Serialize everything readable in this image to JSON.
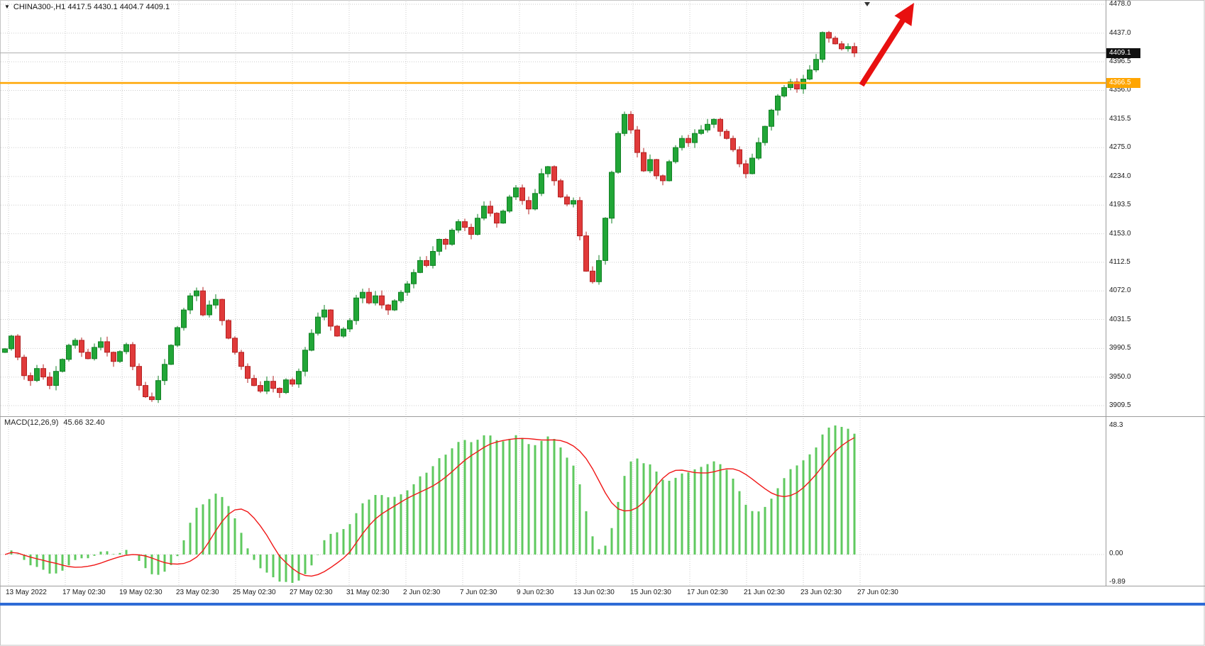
{
  "chart_data": {
    "type": "candlestick",
    "title": "CHINA300-,H1",
    "symbol": "CHINA300-",
    "timeframe": "H1",
    "header": {
      "display": "CHINA300-,H1 4417.5 4430.1 4404.7 4409.1",
      "open": "4417.5",
      "high": "4430.1",
      "low": "4404.7",
      "close": "4409.1"
    },
    "price_axis": {
      "max": 4478.0,
      "min": 3909.5,
      "labels": [
        "4478.0",
        "4437.0",
        "4396.5",
        "4356.0",
        "4315.5",
        "4275.0",
        "4234.0",
        "4193.5",
        "4153.0",
        "4112.5",
        "4072.0",
        "4031.5",
        "3990.5",
        "3950.0",
        "3909.5"
      ]
    },
    "current_price_tag": "4409.1",
    "current_price": 4409.1,
    "hline": {
      "label": "4366.5",
      "value": 4366.5,
      "color": "#FFA500"
    },
    "time_axis_labels": [
      "13 May 2022",
      "17 May 02:30",
      "19 May 02:30",
      "23 May 02:30",
      "25 May 02:30",
      "27 May 02:30",
      "31 May 02:30",
      "2 Jun 02:30",
      "7 Jun 02:30",
      "9 Jun 02:30",
      "13 Jun 02:30",
      "15 Jun 02:30",
      "17 Jun 02:30",
      "21 Jun 02:30",
      "23 Jun 02:30",
      "27 Jun 02:30"
    ],
    "candles": {
      "first_open": 3985,
      "closes": [
        3990,
        4008,
        3978,
        3952,
        3945,
        3962,
        3950,
        3938,
        3958,
        3975,
        3995,
        4002,
        3985,
        3976,
        3992,
        4000,
        3985,
        3972,
        3986,
        3996,
        3965,
        3938,
        3922,
        3918,
        3945,
        3968,
        3995,
        4020,
        4045,
        4065,
        4072,
        4038,
        4052,
        4060,
        4030,
        4005,
        3985,
        3965,
        3948,
        3938,
        3930,
        3944,
        3934,
        3928,
        3946,
        3940,
        3958,
        3988,
        4012,
        4035,
        4045,
        4022,
        4008,
        4018,
        4030,
        4062,
        4070,
        4055,
        4065,
        4052,
        4045,
        4058,
        4070,
        4082,
        4098,
        4115,
        4108,
        4128,
        4145,
        4138,
        4158,
        4170,
        4162,
        4152,
        4175,
        4192,
        4182,
        4168,
        4185,
        4205,
        4218,
        4200,
        4188,
        4210,
        4238,
        4248,
        4228,
        4205,
        4195,
        4200,
        4150,
        4100,
        4085,
        4115,
        4175,
        4240,
        4295,
        4322,
        4300,
        4268,
        4242,
        4258,
        4235,
        4228,
        4255,
        4275,
        4288,
        4282,
        4295,
        4300,
        4308,
        4315,
        4298,
        4288,
        4272,
        4252,
        4238,
        4260,
        4282,
        4305,
        4328,
        4348,
        4360,
        4368,
        4358,
        4372,
        4385,
        4400,
        4438,
        4430,
        4422,
        4415,
        4418,
        4409
      ]
    },
    "indicator": {
      "name": "MACD",
      "params": "12,26,9",
      "label": "MACD(12,26,9)",
      "values_display": "45.66 32.40",
      "main_value": "45.66",
      "signal_value": "32.40",
      "axis_labels": [
        "48.3",
        "0.00",
        "-9.89"
      ],
      "axis_max": 48.3,
      "axis_min": -9.89
    },
    "annotations": [
      {
        "type": "arrow",
        "direction": "up-right",
        "color": "#E81010"
      },
      {
        "type": "horizontal-line",
        "value": 4366.5,
        "color": "#FFA500"
      }
    ],
    "colors": {
      "up": "#21A637",
      "up_border": "#128024",
      "down": "#E03A3A",
      "down_border": "#B32222",
      "grid": "#CDCDCD",
      "hline": "#FFA500",
      "price_line": "#ADADAD",
      "tag_bg": "#101010",
      "macd_histogram": "#5FC95F",
      "macd_signal": "#F01818",
      "arrow": "#E81010",
      "frame": "#9C9C9C",
      "bottom_bar": "#2E6BD6"
    }
  }
}
